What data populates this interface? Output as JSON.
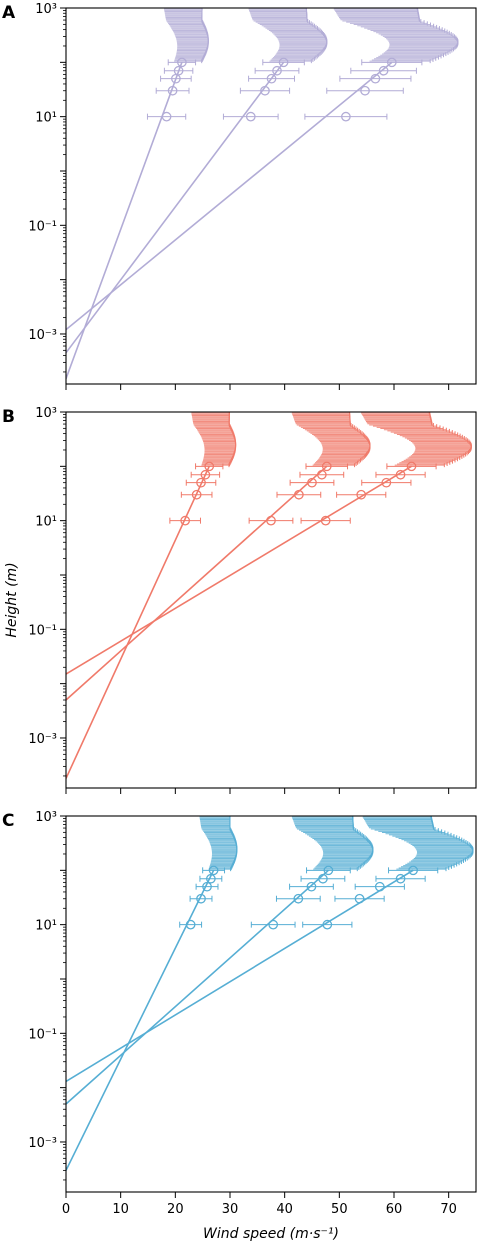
{
  "chart_data": {
    "type": "line",
    "xlabel": "Wind speed (m·s⁻¹)",
    "ylabel": "Height (m)",
    "xlim": [
      0,
      75
    ],
    "xticks": [
      0,
      10,
      20,
      30,
      40,
      50,
      60,
      70
    ],
    "yscale": "log",
    "yticks": [
      "10⁻³",
      "10⁻¹",
      "10¹",
      "10³"
    ],
    "grid": false,
    "panels": [
      {
        "label": "A",
        "color": "#b2acd6",
        "ylim": [
          0.00012,
          1000
        ],
        "measured_heights": [
          10,
          30,
          50,
          70,
          100
        ],
        "profiles": [
          {
            "upper_shape": "weak",
            "z0": 0.00015,
            "points": [
              [
                18.4,
                10,
                3.5
              ],
              [
                19.5,
                30,
                3.0
              ],
              [
                20.1,
                50,
                2.8
              ],
              [
                20.6,
                70,
                2.6
              ],
              [
                21.2,
                100,
                2.5
              ]
            ]
          },
          {
            "upper_shape": "medium",
            "z0": 0.00045,
            "points": [
              [
                33.8,
                10,
                5.0
              ],
              [
                36.4,
                30,
                4.5
              ],
              [
                37.6,
                50,
                4.2
              ],
              [
                38.6,
                70,
                4.0
              ],
              [
                39.8,
                100,
                3.8
              ]
            ]
          },
          {
            "upper_shape": "strong",
            "z0": 0.0012,
            "points": [
              [
                51.2,
                10,
                7.5
              ],
              [
                54.7,
                30,
                7.0
              ],
              [
                56.6,
                50,
                6.5
              ],
              [
                58.1,
                70,
                6.0
              ],
              [
                59.6,
                100,
                5.5
              ]
            ]
          }
        ]
      },
      {
        "label": "B",
        "color": "#f07a6a",
        "ylim": [
          0.00012,
          1000
        ],
        "measured_heights": [
          10,
          30,
          50,
          70,
          100
        ],
        "profiles": [
          {
            "upper_shape": "weak",
            "z0": 0.00018,
            "points": [
              [
                21.8,
                10,
                2.8
              ],
              [
                23.9,
                30,
                2.8
              ],
              [
                24.7,
                50,
                2.7
              ],
              [
                25.5,
                70,
                2.6
              ],
              [
                26.2,
                100,
                2.5
              ]
            ]
          },
          {
            "upper_shape": "medium",
            "z0": 0.005,
            "points": [
              [
                37.5,
                10,
                4.0
              ],
              [
                42.6,
                30,
                4.0
              ],
              [
                45.0,
                50,
                4.0
              ],
              [
                46.8,
                70,
                4.0
              ],
              [
                47.7,
                100,
                3.8
              ]
            ]
          },
          {
            "upper_shape": "strong",
            "z0": 0.015,
            "points": [
              [
                47.5,
                10,
                4.5
              ],
              [
                54.0,
                30,
                4.5
              ],
              [
                58.6,
                50,
                4.5
              ],
              [
                61.2,
                70,
                4.5
              ],
              [
                63.2,
                100,
                4.5
              ]
            ]
          }
        ]
      },
      {
        "label": "C",
        "color": "#56aed4",
        "ylim": [
          0.00012,
          1000
        ],
        "measured_heights": [
          10,
          30,
          50,
          70,
          100
        ],
        "profiles": [
          {
            "upper_shape": "weak",
            "z0": 0.0003,
            "points": [
              [
                22.8,
                10,
                2.0
              ],
              [
                24.7,
                30,
                2.0
              ],
              [
                25.8,
                50,
                2.0
              ],
              [
                26.5,
                70,
                2.0
              ],
              [
                27.0,
                100,
                2.0
              ]
            ]
          },
          {
            "upper_shape": "medium",
            "z0": 0.005,
            "points": [
              [
                37.9,
                10,
                4.0
              ],
              [
                42.5,
                30,
                4.0
              ],
              [
                44.9,
                50,
                4.0
              ],
              [
                47.0,
                70,
                4.0
              ],
              [
                48.0,
                100,
                4.0
              ]
            ]
          },
          {
            "upper_shape": "strong",
            "z0": 0.013,
            "points": [
              [
                47.8,
                10,
                4.5
              ],
              [
                53.7,
                30,
                4.5
              ],
              [
                57.4,
                50,
                4.5
              ],
              [
                61.2,
                70,
                4.5
              ],
              [
                63.5,
                100,
                4.5
              ]
            ]
          }
        ]
      }
    ]
  }
}
